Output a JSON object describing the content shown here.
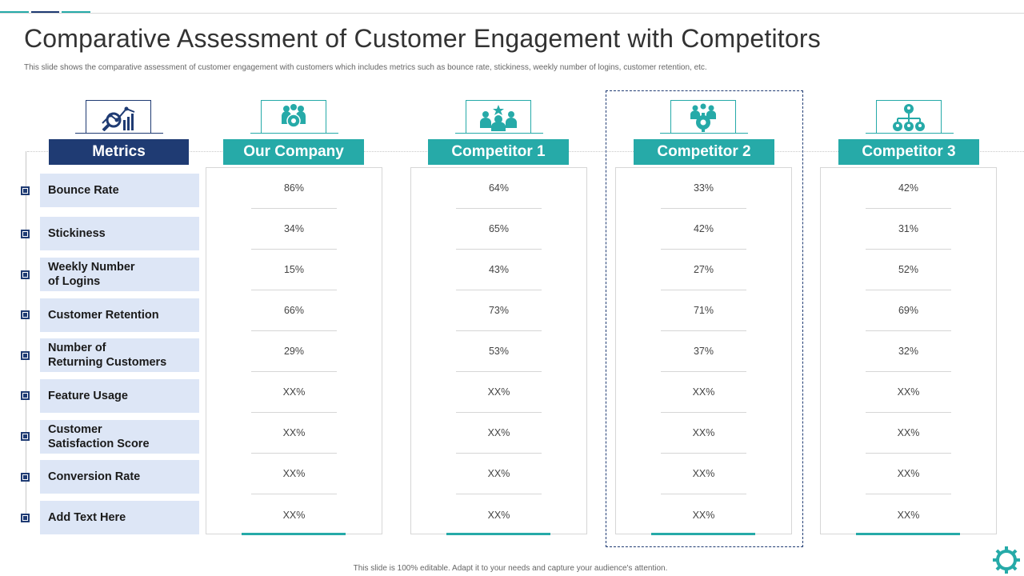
{
  "colors": {
    "navy": "#1f3b73",
    "teal": "#26aaa8",
    "metric_bg": "#dde6f6"
  },
  "title": "Comparative Assessment of Customer Engagement with Competitors",
  "subtitle": "This slide shows the comparative assessment of customer engagement with customers which includes metrics such as bounce rate, stickiness, weekly number of logins, customer retention, etc.",
  "metrics": {
    "header": "Metrics",
    "icon": "analytics-magnifier-icon",
    "items": [
      {
        "line1": "Bounce Rate",
        "line2": ""
      },
      {
        "line1": "Stickiness",
        "line2": ""
      },
      {
        "line1": "Weekly Number",
        "line2": "of Logins"
      },
      {
        "line1": "Customer Retention",
        "line2": ""
      },
      {
        "line1": "Number of",
        "line2": "Returning Customers"
      },
      {
        "line1": "Feature Usage",
        "line2": ""
      },
      {
        "line1": "Customer",
        "line2": "Satisfaction Score"
      },
      {
        "line1": "Conversion Rate",
        "line2": ""
      },
      {
        "line1": "Add Text Here",
        "line2": ""
      }
    ]
  },
  "columns": [
    {
      "name": "Our Company",
      "icon": "team-group-icon",
      "values": [
        "86%",
        "34%",
        "15%",
        "66%",
        "29%",
        "XX%",
        "XX%",
        "XX%",
        "XX%"
      ]
    },
    {
      "name": "Competitor 1",
      "icon": "leader-team-icon",
      "values": [
        "64%",
        "65%",
        "43%",
        "73%",
        "53%",
        "XX%",
        "XX%",
        "XX%",
        "XX%"
      ]
    },
    {
      "name": "Competitor 2",
      "icon": "team-gear-icon",
      "values": [
        "33%",
        "42%",
        "27%",
        "71%",
        "37%",
        "XX%",
        "XX%",
        "XX%",
        "XX%"
      ]
    },
    {
      "name": "Competitor 3",
      "icon": "org-network-icon",
      "values": [
        "42%",
        "31%",
        "52%",
        "69%",
        "32%",
        "XX%",
        "XX%",
        "XX%",
        "XX%"
      ]
    }
  ],
  "footer": "This slide is 100% editable. Adapt it to your needs and capture your audience's attention."
}
